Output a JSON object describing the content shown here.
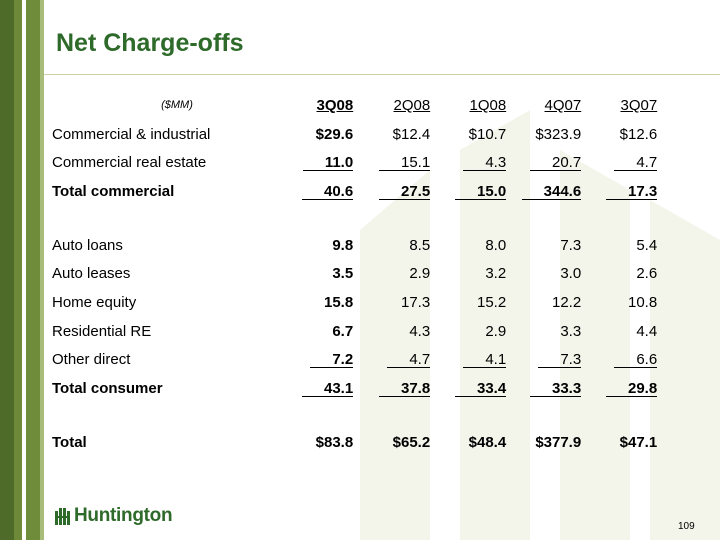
{
  "title": "Net Charge-offs",
  "table": {
    "unit_label": "($MM)",
    "columns": [
      "3Q08",
      "2Q08",
      "1Q08",
      "4Q07",
      "3Q07"
    ],
    "rows": [
      {
        "label": "Commercial & industrial",
        "values": [
          "$29.6",
          "$12.4",
          "$10.7",
          "$323.9",
          "$12.6"
        ],
        "underline": false,
        "bold": false
      },
      {
        "label": "Commercial real estate",
        "values": [
          "11.0",
          "15.1",
          "4.3",
          "20.7",
          "4.7"
        ],
        "underline": true,
        "bold": false
      },
      {
        "label": "Total commercial",
        "values": [
          "40.6",
          "27.5",
          "15.0",
          "344.6",
          "17.3"
        ],
        "underline": true,
        "bold": true
      },
      {
        "label": "Auto loans",
        "values": [
          "9.8",
          "8.5",
          "8.0",
          "7.3",
          "5.4"
        ],
        "underline": false,
        "bold": false
      },
      {
        "label": "Auto leases",
        "values": [
          "3.5",
          "2.9",
          "3.2",
          "3.0",
          "2.6"
        ],
        "underline": false,
        "bold": false
      },
      {
        "label": "Home equity",
        "values": [
          "15.8",
          "17.3",
          "15.2",
          "12.2",
          "10.8"
        ],
        "underline": false,
        "bold": false
      },
      {
        "label": "Residential RE",
        "values": [
          "6.7",
          "4.3",
          "2.9",
          "3.3",
          "4.4"
        ],
        "underline": false,
        "bold": false
      },
      {
        "label": "Other direct",
        "values": [
          "7.2",
          "4.7",
          "4.1",
          "7.3",
          "6.6"
        ],
        "underline": true,
        "bold": false
      },
      {
        "label": "Total consumer",
        "values": [
          "43.1",
          "37.8",
          "33.4",
          "33.3",
          "29.8"
        ],
        "underline": true,
        "bold": true
      },
      {
        "label": "Total",
        "values": [
          "$83.8",
          "$65.2",
          "$48.4",
          "$377.9",
          "$47.1"
        ],
        "underline": false,
        "bold": true
      }
    ]
  },
  "logo": {
    "text": "Huntington",
    "icon": "huntington-logo-icon"
  },
  "page_number": "109",
  "colors": {
    "brand_green": "#2e6a2a",
    "stripe_dark": "#4f6b2a",
    "stripe_mid": "#6f8c3b",
    "watermark": "#f3f5ea"
  }
}
